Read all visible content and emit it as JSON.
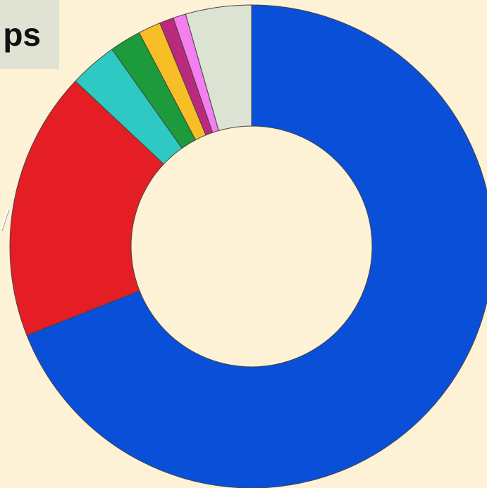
{
  "title_fragment": "ps",
  "colors": {
    "background": "#fdf2d6",
    "title_box": "#e0e3d4",
    "slice_stroke": "#444444"
  },
  "chart_data": {
    "type": "pie",
    "subtype": "donut",
    "title": "",
    "legend": "none",
    "start_angle_deg": 0,
    "direction": "clockwise",
    "slices": [
      {
        "value": 69.0,
        "color": "#0a4fd8"
      },
      {
        "value": 18.0,
        "color": "#e41e24"
      },
      {
        "value": 3.2,
        "color": "#2ec9c2"
      },
      {
        "value": 2.1,
        "color": "#1c9a3c"
      },
      {
        "value": 1.5,
        "color": "#f7bf25"
      },
      {
        "value": 0.95,
        "color": "#bb2a7a"
      },
      {
        "value": 0.85,
        "color": "#f57ef0"
      },
      {
        "value": 4.4,
        "color": "#dde3d2"
      }
    ]
  }
}
